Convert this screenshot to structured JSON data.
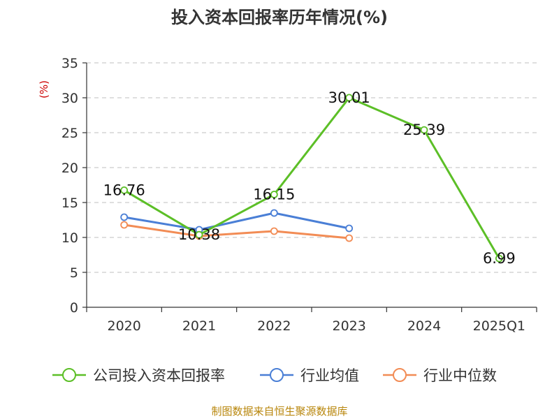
{
  "chart_data": {
    "type": "line",
    "title": "投入资本回报率历年情况(%)",
    "unit_label": "(%)",
    "categories": [
      "2020",
      "2021",
      "2022",
      "2023",
      "2024",
      "2025Q1"
    ],
    "ylim": [
      0,
      35
    ],
    "yticks": [
      "0",
      "5",
      "10",
      "15",
      "20",
      "25",
      "30",
      "35"
    ],
    "grid": true,
    "legend_position": "bottom",
    "series": [
      {
        "name": "公司投入资本回报率",
        "color": "#5cbf27",
        "values": [
          16.76,
          10.38,
          16.15,
          30.01,
          25.39,
          6.99
        ],
        "labels": [
          "16.76",
          "10.38",
          "16.15",
          "30.01",
          "25.39",
          "6.99"
        ]
      },
      {
        "name": "行业均值",
        "color": "#4a7fd6",
        "values": [
          12.9,
          11.1,
          13.5,
          11.3,
          null,
          null
        ]
      },
      {
        "name": "行业中位数",
        "color": "#f28c55",
        "values": [
          11.8,
          10.2,
          10.9,
          9.9,
          null,
          null
        ]
      }
    ],
    "source": "制图数据来自恒生聚源数据库"
  }
}
